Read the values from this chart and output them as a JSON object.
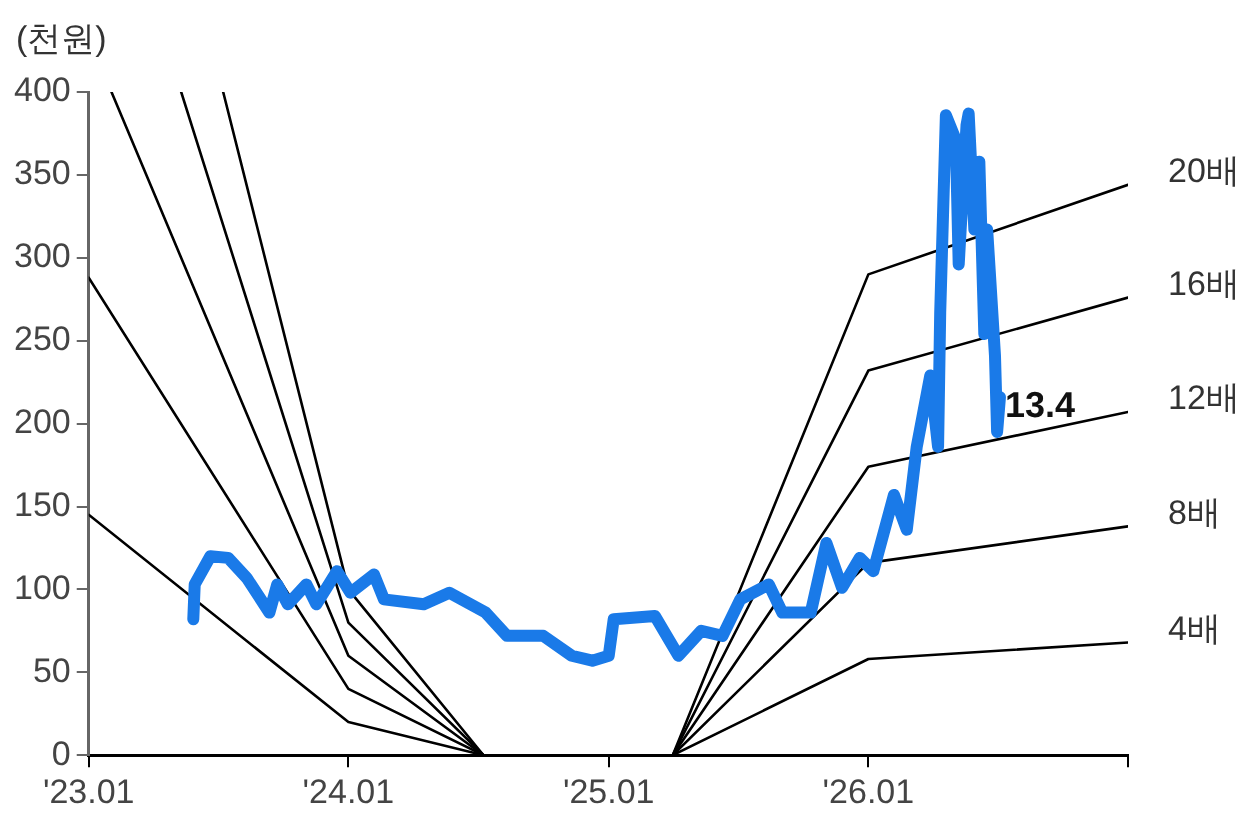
{
  "chart_data": {
    "type": "line",
    "ylabel": "(천원)",
    "xlim": [
      "2023-01",
      "2027-01"
    ],
    "xticks": [
      {
        "value": "2023-01",
        "label": "'23.01"
      },
      {
        "value": "2024-01",
        "label": "'24.01"
      },
      {
        "value": "2025-01",
        "label": "'25.01"
      },
      {
        "value": "2026-01",
        "label": "'26.01"
      },
      {
        "value": "2027-01",
        "label": null
      }
    ],
    "ylim": [
      0,
      400
    ],
    "yticks": [
      0,
      50,
      100,
      150,
      200,
      250,
      300,
      350,
      400
    ],
    "grid": false,
    "legend": false,
    "marker": "none",
    "line_style": "solid",
    "series": [
      {
        "color": "#1a7ae8",
        "x": [
          "2023-05-28",
          "2023-05-30",
          "2023-06-21",
          "2023-07-16",
          "2023-08-11",
          "2023-09-12",
          "2023-09-23",
          "2023-10-08",
          "2023-11-03",
          "2023-11-17",
          "2023-12-16",
          "2024-01-04",
          "2024-02-06",
          "2024-02-20",
          "2024-04-16",
          "2024-05-22",
          "2024-07-12",
          "2024-08-11",
          "2024-10-01",
          "2024-11-10",
          "2024-12-09",
          "2025-01-01",
          "2025-01-08",
          "2025-03-07",
          "2025-04-09",
          "2025-05-11",
          "2025-06-10",
          "2025-07-05",
          "2025-08-14",
          "2025-09-02",
          "2025-10-12",
          "2025-11-03",
          "2025-11-25",
          "2025-12-20",
          "2026-01-08",
          "2026-02-06",
          "2026-02-24",
          "2026-03-10",
          "2026-03-29",
          "2026-04-09",
          "2026-04-12",
          "2026-04-20",
          "2026-05-04",
          "2026-05-08",
          "2026-05-19",
          "2026-05-22",
          "2026-05-30",
          "2026-06-06",
          "2026-06-13",
          "2026-06-17",
          "2026-06-28",
          "2026-07-01",
          "2026-07-05"
        ],
        "values": [
          82,
          103,
          120,
          119,
          107,
          86,
          103,
          91,
          103,
          91,
          111,
          98,
          109,
          94,
          91,
          98,
          86,
          72,
          72,
          60,
          57,
          60,
          82,
          84,
          60,
          75,
          72,
          94,
          103,
          86,
          86,
          128,
          101,
          119,
          111,
          157,
          136,
          186,
          229,
          186,
          267,
          386,
          371,
          296,
          380,
          387,
          317,
          358,
          254,
          317,
          241,
          195,
          216
        ]
      },
      {
        "name": "4배",
        "color": "#000000",
        "x": [
          "2023-01-01",
          "2024-01-01",
          "2024-07-09",
          "2025-04-01",
          "2026-01-01",
          "2027-01-01"
        ],
        "values": [
          145,
          20,
          0,
          0,
          58,
          68
        ]
      },
      {
        "name": "8배",
        "color": "#000000",
        "x": [
          "2023-01-01",
          "2024-01-01",
          "2024-07-09",
          "2025-04-01",
          "2026-01-01",
          "2027-01-01"
        ],
        "values": [
          288,
          40,
          0,
          0,
          116,
          138
        ]
      },
      {
        "name": "12배",
        "color": "#000000",
        "x": [
          "2023-02-02",
          "2024-01-01",
          "2024-07-09",
          "2025-04-01",
          "2026-01-01",
          "2027-01-01"
        ],
        "values": [
          400,
          60,
          0,
          0,
          174,
          207
        ]
      },
      {
        "name": "16배",
        "color": "#000000",
        "x": [
          "2023-05-11",
          "2024-01-01",
          "2024-07-09",
          "2025-04-01",
          "2026-01-01",
          "2027-01-01"
        ],
        "values": [
          400,
          80,
          0,
          0,
          232,
          276
        ]
      },
      {
        "name": "20배",
        "color": "#000000",
        "x": [
          "2023-07-09",
          "2024-01-01",
          "2024-07-09",
          "2025-04-01",
          "2026-01-01",
          "2027-01-01"
        ],
        "values": [
          400,
          100,
          0,
          0,
          290,
          344
        ]
      }
    ],
    "annotations": [
      {
        "text": "13.4",
        "x": "2026-07-12",
        "y": 210
      }
    ]
  }
}
